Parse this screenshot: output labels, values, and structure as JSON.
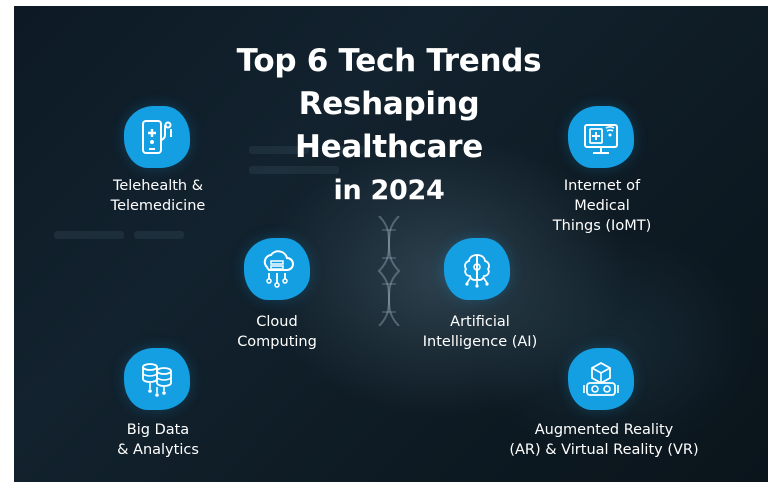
{
  "title": {
    "line1": "Top 6 Tech Trends",
    "line2": "Reshaping",
    "line3": "Healthcare",
    "line4": "in 2024"
  },
  "trends": [
    {
      "icon": "telehealth-icon",
      "lines": [
        "Telehealth &",
        "Telemedicine"
      ]
    },
    {
      "icon": "iomt-icon",
      "lines": [
        "Internet of",
        "Medical",
        "Things (IoMT)"
      ]
    },
    {
      "icon": "cloud-computing-icon",
      "lines": [
        "Cloud",
        "Computing"
      ]
    },
    {
      "icon": "ai-brain-icon",
      "lines": [
        "Artificial",
        "Intelligence (AI)"
      ]
    },
    {
      "icon": "big-data-icon",
      "lines": [
        "Big Data",
        "& Analytics"
      ]
    },
    {
      "icon": "ar-vr-icon",
      "lines": [
        "Augmented Reality",
        "(AR) & Virtual Reality (VR)"
      ]
    }
  ],
  "colors": {
    "badge": "#159fe3",
    "background": "#0e1b24",
    "text": "#ffffff"
  }
}
